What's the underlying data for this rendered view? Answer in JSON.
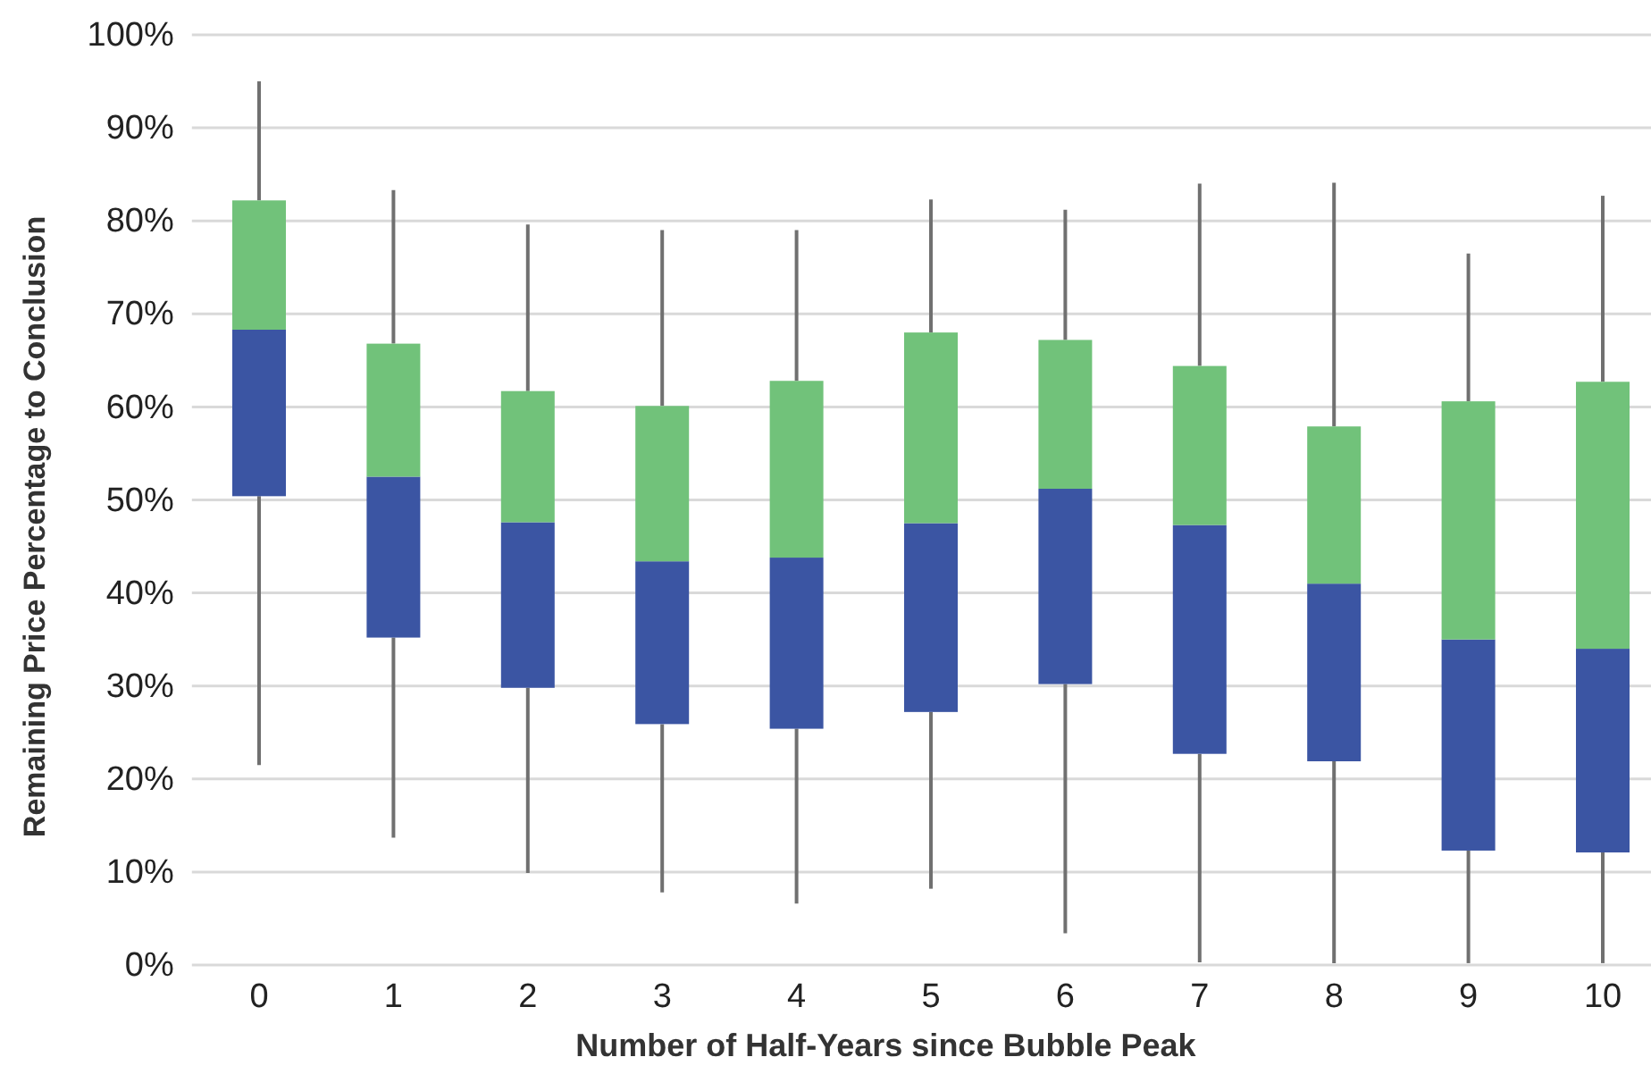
{
  "chart_data": {
    "type": "box",
    "xlabel": "Number of Half-Years since Bubble Peak",
    "ylabel": "Remaining Price Percentage to Conclusion",
    "categories": [
      "0",
      "1",
      "2",
      "3",
      "4",
      "5",
      "6",
      "7",
      "8",
      "9",
      "10"
    ],
    "boxes": [
      {
        "low": 21.5,
        "q1": 50.4,
        "median": 68.3,
        "q3": 82.2,
        "high": 95
      },
      {
        "low": 13.7,
        "q1": 35.2,
        "median": 52.5,
        "q3": 66.8,
        "high": 83.3
      },
      {
        "low": 9.9,
        "q1": 29.8,
        "median": 47.6,
        "q3": 61.7,
        "high": 79.6
      },
      {
        "low": 7.8,
        "q1": 25.9,
        "median": 43.4,
        "q3": 60.1,
        "high": 79
      },
      {
        "low": 6.6,
        "q1": 25.4,
        "median": 43.8,
        "q3": 62.8,
        "high": 79
      },
      {
        "low": 8.2,
        "q1": 27.2,
        "median": 47.5,
        "q3": 68,
        "high": 82.3
      },
      {
        "low": 3.4,
        "q1": 30.2,
        "median": 51.2,
        "q3": 67.2,
        "high": 81.2
      },
      {
        "low": 0.3,
        "q1": 22.7,
        "median": 47.3,
        "q3": 64.4,
        "high": 84
      },
      {
        "low": 0.2,
        "q1": 21.9,
        "median": 41,
        "q3": 57.9,
        "high": 84.1
      },
      {
        "low": 0.2,
        "q1": 12.3,
        "median": 35,
        "q3": 60.6,
        "high": 76.5
      },
      {
        "low": 0.2,
        "q1": 12.1,
        "median": 34,
        "q3": 62.7,
        "high": 82.7
      }
    ],
    "ylim": [
      0,
      100
    ],
    "yticks": [
      {
        "value": 0,
        "label": "0%"
      },
      {
        "value": 10,
        "label": "10%"
      },
      {
        "value": 20,
        "label": "20%"
      },
      {
        "value": 30,
        "label": "30%"
      },
      {
        "value": 40,
        "label": "40%"
      },
      {
        "value": 50,
        "label": "50%"
      },
      {
        "value": 60,
        "label": "60%"
      },
      {
        "value": 70,
        "label": "70%"
      },
      {
        "value": 80,
        "label": "80%"
      },
      {
        "value": 90,
        "label": "90%"
      },
      {
        "value": 100,
        "label": "100%"
      }
    ],
    "grid": "y"
  }
}
